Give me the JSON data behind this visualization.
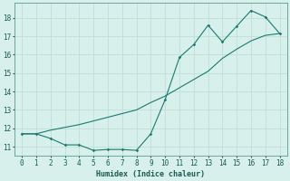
{
  "title": "",
  "xlabel": "Humidex (Indice chaleur)",
  "background_color": "#d8f0ec",
  "line_color": "#1a7a6e",
  "grid_color": "#c0ddd8",
  "series1_x": [
    0,
    1,
    2,
    3,
    4,
    5,
    6,
    7,
    8,
    9,
    10,
    11,
    12,
    13,
    14,
    15,
    16,
    17,
    18
  ],
  "series1_y": [
    11.7,
    11.7,
    11.45,
    11.1,
    11.1,
    10.8,
    10.85,
    10.85,
    10.8,
    11.7,
    13.55,
    15.85,
    16.55,
    17.6,
    16.7,
    17.55,
    18.4,
    18.05,
    17.15
  ],
  "series2_x": [
    0,
    1,
    2,
    3,
    4,
    5,
    6,
    7,
    8,
    9,
    10,
    11,
    12,
    13,
    14,
    15,
    16,
    17,
    18
  ],
  "series2_y": [
    11.7,
    11.7,
    11.9,
    12.05,
    12.2,
    12.4,
    12.6,
    12.8,
    13.0,
    13.4,
    13.75,
    14.2,
    14.65,
    15.1,
    15.8,
    16.3,
    16.75,
    17.05,
    17.15
  ],
  "xlim": [
    -0.5,
    18.5
  ],
  "ylim": [
    10.5,
    18.8
  ],
  "xticks": [
    0,
    1,
    2,
    3,
    4,
    5,
    6,
    7,
    8,
    9,
    10,
    11,
    12,
    13,
    14,
    15,
    16,
    17,
    18
  ],
  "yticks": [
    11,
    12,
    13,
    14,
    15,
    16,
    17,
    18
  ]
}
